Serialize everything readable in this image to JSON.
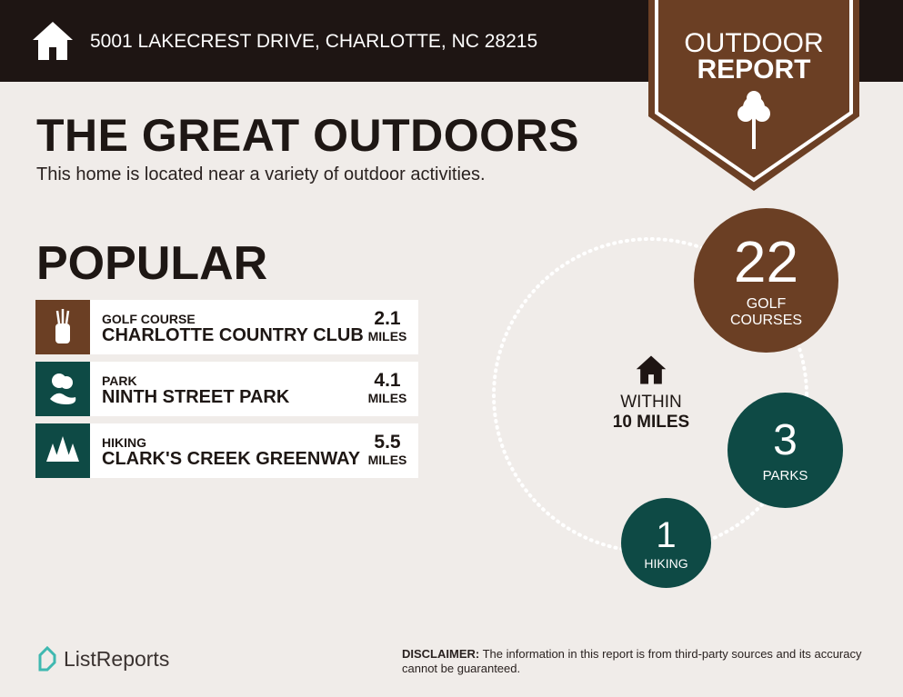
{
  "header": {
    "address": "5001 LAKECREST DRIVE, CHARLOTTE, NC 28215"
  },
  "badge": {
    "line1": "OUTDOOR",
    "line2": "REPORT"
  },
  "title": "THE GREAT OUTDOORS",
  "subtitle": "This home is located near a variety of outdoor activities.",
  "popular": {
    "heading": "POPULAR",
    "items": [
      {
        "category": "GOLF COURSE",
        "name": "CHARLOTTE COUNTRY CLUB",
        "distance": "2.1",
        "unit": "MILES",
        "icon": "golf-bag-icon",
        "color": "#6b3f24"
      },
      {
        "category": "PARK",
        "name": "NINTH STREET PARK",
        "distance": "4.1",
        "unit": "MILES",
        "icon": "park-icon",
        "color": "#0e4a45"
      },
      {
        "category": "HIKING",
        "name": "CLARK'S CREEK GREENWAY",
        "distance": "5.5",
        "unit": "MILES",
        "icon": "pine-trees-icon",
        "color": "#0e4a45"
      }
    ]
  },
  "radius": {
    "line1": "WITHIN",
    "line2": "10 MILES"
  },
  "counts": [
    {
      "value": "22",
      "label1": "GOLF",
      "label2": "COURSES",
      "color": "#6b3f24"
    },
    {
      "value": "3",
      "label": "PARKS",
      "color": "#0e4a45"
    },
    {
      "value": "1",
      "label": "HIKING",
      "color": "#0e4a45"
    }
  ],
  "footer": {
    "logo": "ListReports",
    "disclaimer_label": "DISCLAIMER:",
    "disclaimer": " The information in this report is from third-party sources and its accuracy cannot be guaranteed."
  }
}
